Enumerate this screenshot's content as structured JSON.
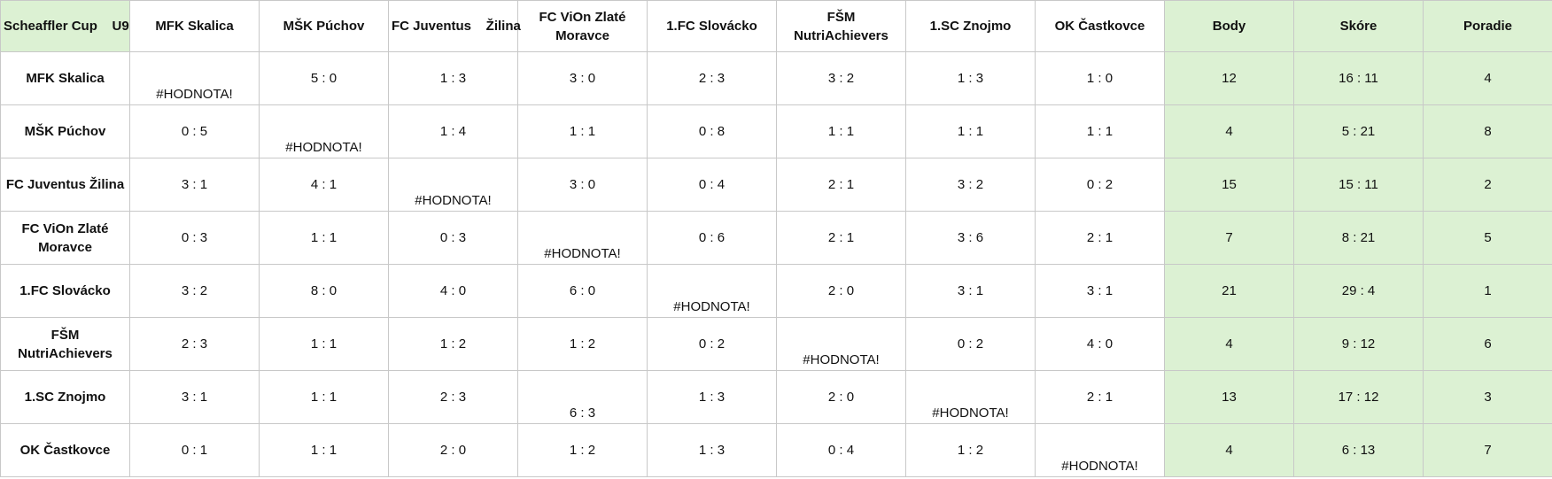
{
  "table": {
    "header": [
      "Scheaffler Cup    U9",
      "MFK Skalica",
      "MŠK Púchov",
      "FC Juventus    Žilina",
      "FC ViOn Zlaté Moravce",
      "1.FC Slovácko",
      "FŠM NutriAchievers",
      "1.SC Znojmo",
      "OK Častkovce",
      "Body",
      "Skóre",
      "Poradie"
    ],
    "rows": [
      [
        "MFK Skalica",
        "#HODNOTA!",
        "5 : 0",
        "1 : 3",
        "3 : 0",
        "2 : 3",
        "3 : 2",
        "1 : 3",
        "1 : 0",
        12,
        "16 : 11",
        4
      ],
      [
        "MŠK Púchov",
        "0 : 5",
        "#HODNOTA!",
        "1 : 4",
        "1 : 1",
        "0 : 8",
        "1 : 1",
        "1 : 1",
        "1 : 1",
        4,
        "5 : 21",
        8
      ],
      [
        "FC Juventus Žilina",
        "3 : 1",
        "4 : 1",
        "#HODNOTA!",
        "3 : 0",
        "0 : 4",
        "2 : 1",
        "3 : 2",
        "0 : 2",
        15,
        "15 : 11",
        2
      ],
      [
        "FC ViOn Zlaté Moravce",
        "0 : 3",
        "1 : 1",
        "0 : 3",
        "#HODNOTA!",
        "0 : 6",
        "2 : 1",
        "3 : 6",
        "2 : 1",
        7,
        "8 : 21",
        5
      ],
      [
        "1.FC Slovácko",
        "3 : 2",
        "8 : 0",
        "4 : 0",
        "6 : 0",
        "#HODNOTA!",
        "2 : 0",
        "3 : 1",
        "3 : 1",
        21,
        "29 : 4",
        1
      ],
      [
        "FŠM NutriAchievers",
        "2 : 3",
        "1 : 1",
        "1 : 2",
        "1 : 2",
        "0 : 2",
        "#HODNOTA!",
        "0 : 2",
        "4 : 0",
        4,
        "9 : 12",
        6
      ],
      [
        "1.SC Znojmo",
        "3 : 1",
        "1 : 1",
        "2 : 3",
        "6 : 3",
        "1 : 3",
        "2 : 0",
        "#HODNOTA!",
        "2 : 1",
        13,
        "17 : 12",
        3
      ],
      [
        "OK Častkovce",
        "0 : 1",
        "1 : 1",
        "2 : 0",
        "1 : 2",
        "1 : 3",
        "0 : 4",
        "1 : 2",
        "#HODNOTA!",
        4,
        "6 : 13",
        7
      ]
    ]
  }
}
